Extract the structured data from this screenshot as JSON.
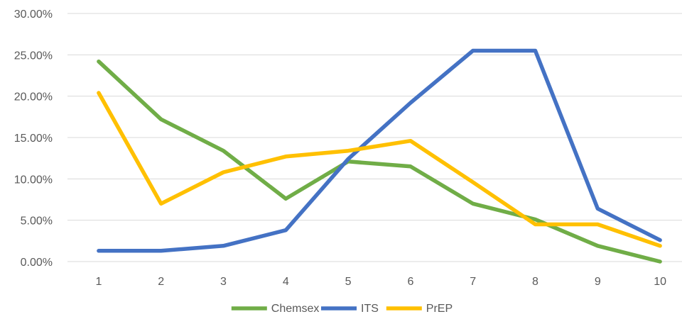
{
  "chart_data": {
    "type": "line",
    "title": "",
    "xlabel": "",
    "ylabel": "",
    "categories": [
      "1",
      "2",
      "3",
      "4",
      "5",
      "6",
      "7",
      "8",
      "9",
      "10"
    ],
    "ylim": [
      0,
      30
    ],
    "y_ticks": [
      "0.00%",
      "5.00%",
      "10.00%",
      "15.00%",
      "20.00%",
      "25.00%",
      "30.00%"
    ],
    "y_tick_values": [
      0,
      5,
      10,
      15,
      20,
      25,
      30
    ],
    "grid": true,
    "legend_position": "bottom",
    "series": [
      {
        "name": "Chemsex",
        "color": "#70AD47",
        "values": [
          24.2,
          17.2,
          13.4,
          7.6,
          12.1,
          11.5,
          7.0,
          5.1,
          1.9,
          0.0
        ]
      },
      {
        "name": "ITS",
        "color": "#4472C4",
        "values": [
          1.3,
          1.3,
          1.9,
          3.8,
          12.4,
          19.2,
          25.5,
          25.5,
          6.4,
          2.6
        ]
      },
      {
        "name": "PrEP",
        "color": "#FFC000",
        "values": [
          20.4,
          7.0,
          10.8,
          12.7,
          13.4,
          14.6,
          9.6,
          4.5,
          4.5,
          1.9
        ]
      }
    ]
  }
}
